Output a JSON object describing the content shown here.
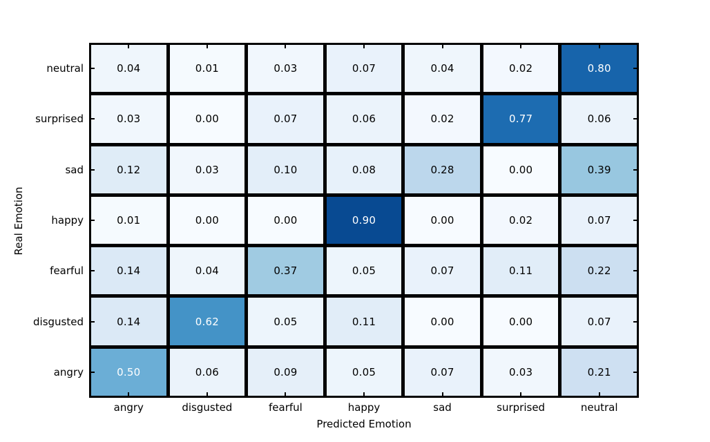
{
  "figure": {
    "background": "#ffffff",
    "frame_color": "#000000"
  },
  "chart_data": {
    "type": "heatmap",
    "title": "",
    "xlabel": "Predicted Emotion",
    "ylabel": "Real Emotion",
    "x_categories": [
      "angry",
      "disgusted",
      "fearful",
      "happy",
      "sad",
      "surprised",
      "neutral"
    ],
    "y_categories": [
      "neutral",
      "surprised",
      "sad",
      "happy",
      "fearful",
      "disgusted",
      "angry"
    ],
    "values": [
      [
        0.04,
        0.01,
        0.03,
        0.07,
        0.04,
        0.02,
        0.8
      ],
      [
        0.03,
        0.0,
        0.07,
        0.06,
        0.02,
        0.77,
        0.06
      ],
      [
        0.12,
        0.03,
        0.1,
        0.08,
        0.28,
        0.0,
        0.39
      ],
      [
        0.01,
        0.0,
        0.0,
        0.9,
        0.0,
        0.02,
        0.07
      ],
      [
        0.14,
        0.04,
        0.37,
        0.05,
        0.07,
        0.11,
        0.22
      ],
      [
        0.14,
        0.62,
        0.05,
        0.11,
        0.0,
        0.0,
        0.07
      ],
      [
        0.5,
        0.06,
        0.09,
        0.05,
        0.07,
        0.03,
        0.21
      ]
    ],
    "value_decimals": 2,
    "vmin": 0,
    "vmax": 1,
    "colormap": "Blues",
    "colormap_stops": [
      [
        0.0,
        "#f7fbff"
      ],
      [
        0.125,
        "#deebf7"
      ],
      [
        0.25,
        "#c6dbef"
      ],
      [
        0.375,
        "#9ecae1"
      ],
      [
        0.5,
        "#6baed6"
      ],
      [
        0.625,
        "#4292c6"
      ],
      [
        0.75,
        "#2171b5"
      ],
      [
        0.875,
        "#08519c"
      ],
      [
        1.0,
        "#08306b"
      ]
    ],
    "cell_text_color_light": "#000000",
    "cell_text_color_dark": "#ffffff",
    "white_text_threshold": 0.45,
    "grid_on": true,
    "gridline_color": "#000000",
    "legend_position": "none"
  }
}
